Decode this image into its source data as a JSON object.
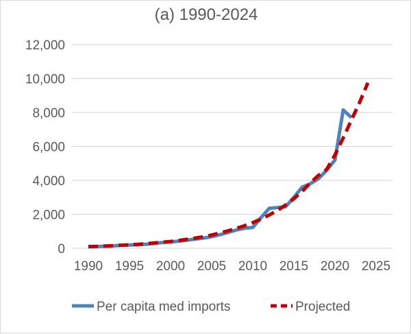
{
  "chart_data": {
    "type": "line",
    "title": "(a) 1990-2024",
    "xlabel": "",
    "ylabel": "",
    "xlim": [
      1988,
      2027
    ],
    "ylim": [
      0,
      12000
    ],
    "x_ticks": [
      1990,
      1995,
      2000,
      2005,
      2010,
      2015,
      2020,
      2025
    ],
    "y_ticks": [
      0,
      2000,
      4000,
      6000,
      8000,
      10000,
      12000
    ],
    "y_tick_labels": [
      "0",
      "2,000",
      "4,000",
      "6,000",
      "8,000",
      "10,000",
      "12,000"
    ],
    "grid": true,
    "legend_position": "bottom",
    "series": [
      {
        "name": "Per capita med imports",
        "color": "#4f81bd",
        "style": "solid",
        "x": [
          1990,
          1991,
          1992,
          1993,
          1994,
          1995,
          1996,
          1997,
          1998,
          1999,
          2000,
          2001,
          2002,
          2003,
          2004,
          2005,
          2006,
          2007,
          2008,
          2009,
          2010,
          2011,
          2012,
          2013,
          2014,
          2015,
          2016,
          2017,
          2018,
          2019,
          2020,
          2021,
          2022
        ],
        "values": [
          80,
          100,
          120,
          140,
          170,
          190,
          210,
          240,
          290,
          340,
          370,
          420,
          480,
          540,
          600,
          680,
          800,
          930,
          1080,
          1180,
          1230,
          1800,
          2350,
          2400,
          2450,
          3000,
          3600,
          3800,
          4100,
          4600,
          5200,
          8150,
          7700
        ]
      },
      {
        "name": "Projected",
        "color": "#c00000",
        "style": "dashed",
        "x": [
          1990,
          1991,
          1992,
          1993,
          1994,
          1995,
          1996,
          1997,
          1998,
          1999,
          2000,
          2001,
          2002,
          2003,
          2004,
          2005,
          2006,
          2007,
          2008,
          2009,
          2010,
          2011,
          2012,
          2013,
          2014,
          2015,
          2016,
          2017,
          2018,
          2019,
          2020,
          2021,
          2022,
          2023,
          2024
        ],
        "values": [
          100,
          115,
          135,
          155,
          180,
          205,
          235,
          270,
          310,
          355,
          400,
          460,
          530,
          600,
          680,
          780,
          900,
          1030,
          1170,
          1330,
          1510,
          1720,
          1960,
          2230,
          2550,
          2920,
          3350,
          3850,
          4300,
          4650,
          5500,
          6500,
          7550,
          8600,
          9750
        ]
      }
    ]
  }
}
